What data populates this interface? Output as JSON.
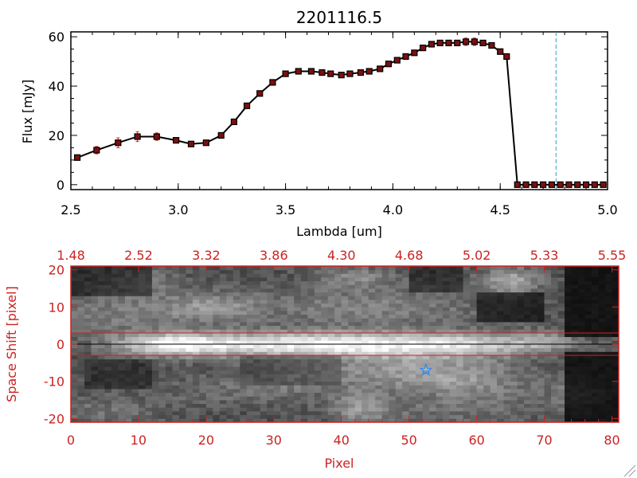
{
  "colors": {
    "axis": "#000000",
    "accent": "#cc2222",
    "series": "#000000",
    "marker": "#7a1010",
    "errorbar": "#cc2222",
    "vline": "#2aa0c8",
    "star": "#3a8ee6",
    "background": "#ffffff"
  },
  "chart_data": [
    {
      "type": "line",
      "title": "2201116.5",
      "xlabel": "Lambda [um]",
      "ylabel": "Flux [mJy]",
      "xlim": [
        2.5,
        5.0
      ],
      "ylim": [
        -2,
        62
      ],
      "xticks": [
        "2.5",
        "3.0",
        "3.5",
        "4.0",
        "4.5",
        "5.0"
      ],
      "yticks": [
        "0",
        "20",
        "40",
        "60"
      ],
      "grid": false,
      "vline_x": 4.76,
      "hline_y": 0,
      "series": [
        {
          "x": [
            2.53,
            2.62,
            2.72,
            2.81,
            2.9,
            2.99,
            3.06,
            3.13,
            3.2,
            3.26,
            3.32,
            3.38,
            3.44,
            3.5,
            3.56,
            3.62,
            3.67,
            3.71,
            3.76,
            3.8,
            3.85,
            3.89,
            3.94,
            3.98,
            4.02,
            4.06,
            4.1,
            4.14,
            4.18,
            4.22,
            4.26,
            4.3,
            4.34,
            4.38,
            4.42,
            4.46,
            4.5,
            4.53,
            4.58,
            4.62,
            4.66,
            4.7,
            4.74,
            4.78,
            4.82,
            4.86,
            4.9,
            4.94,
            4.98
          ],
          "y": [
            11,
            14,
            17,
            19.5,
            19.5,
            18,
            16.5,
            17,
            20,
            25.5,
            32,
            37,
            41.5,
            45,
            46,
            46,
            45.5,
            45,
            44.5,
            45,
            45.5,
            46,
            47,
            49,
            50.5,
            52,
            53.5,
            55.5,
            57,
            57.5,
            57.5,
            57.5,
            58,
            58,
            57.5,
            56.5,
            54,
            52,
            0,
            0,
            0,
            0,
            0,
            0,
            0,
            0,
            0,
            0,
            0
          ],
          "err": [
            1,
            1.5,
            2,
            2,
            1.5,
            1,
            1,
            1,
            1,
            1,
            1,
            1,
            1,
            1,
            0.5,
            0.5,
            0.5,
            0.5,
            0.5,
            0.5,
            0.5,
            0.5,
            0.5,
            0.5,
            0.5,
            0.5,
            0.5,
            0.5,
            0.5,
            1,
            1,
            1,
            1.5,
            1.5,
            1,
            1,
            1,
            1,
            0.3,
            0.3,
            0.3,
            0.3,
            0.3,
            0.3,
            0.3,
            0.3,
            0.3,
            0.3,
            0.3
          ]
        }
      ]
    },
    {
      "type": "heatmap",
      "xlabel": "Pixel",
      "ylabel": "Space Shift [pixel]",
      "xlim": [
        0,
        81
      ],
      "ylim": [
        -21,
        21
      ],
      "xticks": [
        "0",
        "10",
        "20",
        "30",
        "40",
        "50",
        "60",
        "70",
        "80"
      ],
      "yticks": [
        "-20",
        "-10",
        "0",
        "10",
        "20"
      ],
      "top_ticks": [
        "1.48",
        "2.52",
        "3.32",
        "3.86",
        "4.30",
        "4.68",
        "5.02",
        "5.33",
        "5.55"
      ],
      "hlines_y": [
        3,
        0,
        -3
      ],
      "star": {
        "x": 52.5,
        "y": -7
      }
    }
  ]
}
